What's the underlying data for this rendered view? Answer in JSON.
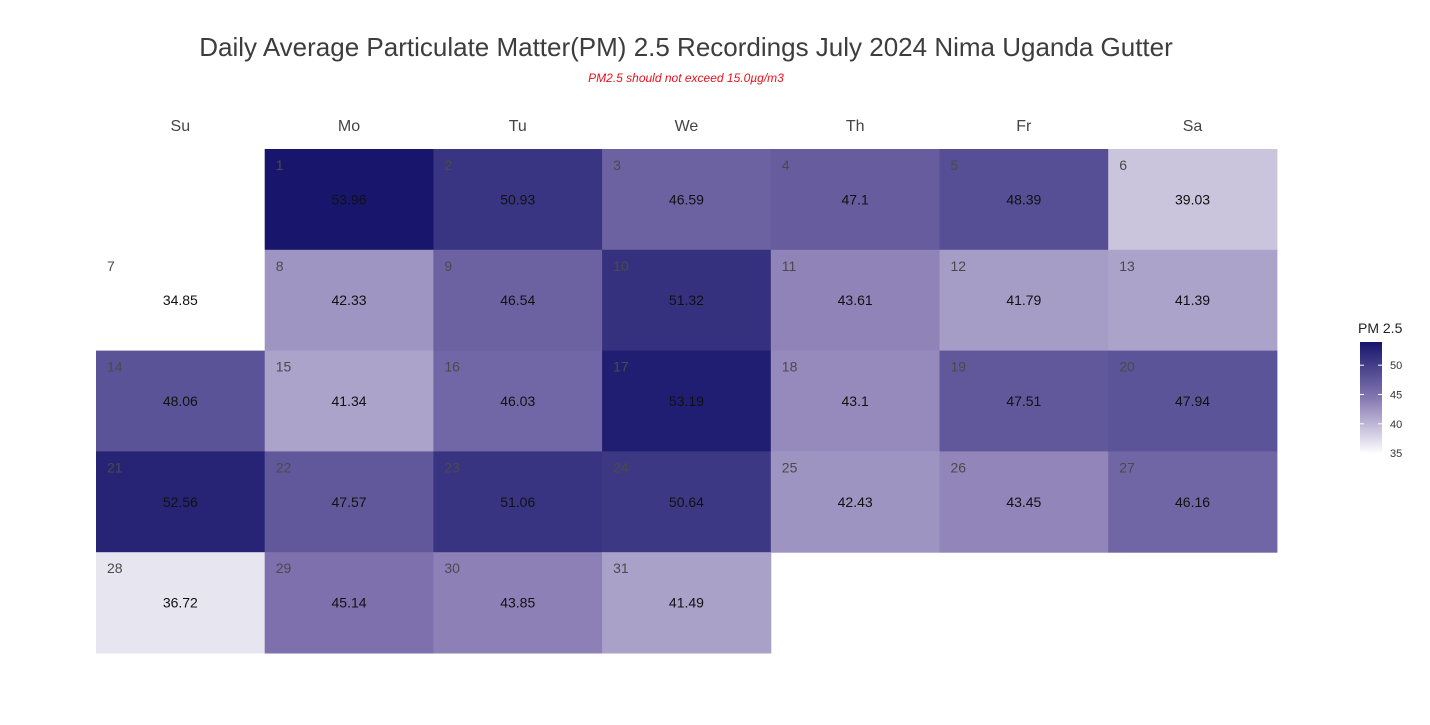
{
  "title": "Daily Average Particulate Matter(PM) 2.5 Recordings July 2024 Nima Uganda Gutter",
  "subtitle": "PM2.5 should not exceed 15.0µg/m3",
  "colors": {
    "scale_low": "#ffffff",
    "scale_high": "#17166c",
    "subtitle": "#e8121b"
  },
  "chart_data": {
    "type": "heatmap",
    "layout": "calendar",
    "month": "July 2024",
    "weekdays": [
      "Su",
      "Mo",
      "Tu",
      "We",
      "Th",
      "Fr",
      "Sa"
    ],
    "first_weekday_index": 1,
    "days": [
      1,
      2,
      3,
      4,
      5,
      6,
      7,
      8,
      9,
      10,
      11,
      12,
      13,
      14,
      15,
      16,
      17,
      18,
      19,
      20,
      21,
      22,
      23,
      24,
      25,
      26,
      27,
      28,
      29,
      30,
      31
    ],
    "values": [
      53.96,
      50.93,
      46.59,
      47.1,
      48.39,
      39.03,
      34.85,
      42.33,
      46.54,
      51.32,
      43.61,
      41.79,
      41.39,
      48.06,
      41.34,
      46.03,
      53.19,
      43.1,
      47.51,
      47.94,
      52.56,
      47.57,
      51.06,
      50.64,
      42.43,
      43.45,
      46.16,
      36.72,
      45.14,
      43.85,
      41.49
    ],
    "value_labels": [
      "53.96",
      "50.93",
      "46.59",
      "47.1",
      "48.39",
      "39.03",
      "34.85",
      "42.33",
      "46.54",
      "51.32",
      "43.61",
      "41.79",
      "41.39",
      "48.06",
      "41.34",
      "46.03",
      "53.19",
      "43.1",
      "47.51",
      "47.94",
      "52.56",
      "47.57",
      "51.06",
      "50.64",
      "42.43",
      "43.45",
      "46.16",
      "36.72",
      "45.14",
      "43.85",
      "41.49"
    ],
    "legend": {
      "title": "PM 2.5",
      "ticks": [
        "50",
        "45",
        "40",
        "35"
      ],
      "range": [
        34.85,
        53.96
      ],
      "position": "right"
    }
  }
}
